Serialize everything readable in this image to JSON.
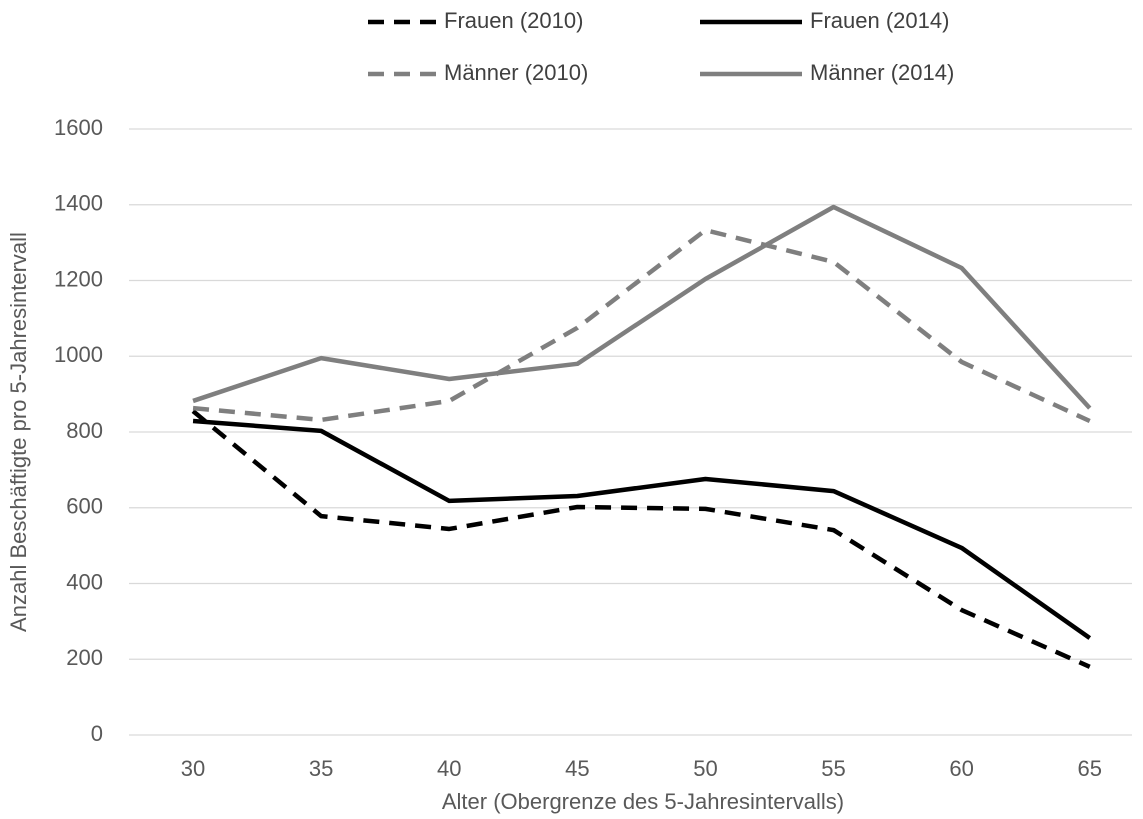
{
  "chart_data": {
    "type": "line",
    "x_label": "Alter (Obergrenze des 5-Jahresintervalls)",
    "y_label": "Anzahl Beschäftigte pro 5-Jahresintervall",
    "categories": [
      "30",
      "35",
      "40",
      "45",
      "50",
      "55",
      "60",
      "65"
    ],
    "series": [
      {
        "name": "Frauen (2010)",
        "color": "#000000",
        "dashed": true,
        "values": [
          855,
          578,
          544,
          602,
          597,
          541,
          330,
          180
        ]
      },
      {
        "name": "Frauen (2014)",
        "color": "#000000",
        "dashed": false,
        "values": [
          829,
          803,
          618,
          631,
          676,
          644,
          494,
          256
        ]
      },
      {
        "name": "Männer (2010)",
        "color": "#7f7f7f",
        "dashed": true,
        "values": [
          863,
          832,
          882,
          1075,
          1333,
          1249,
          985,
          829
        ]
      },
      {
        "name": "Männer (2014)",
        "color": "#7f7f7f",
        "dashed": false,
        "values": [
          882,
          995,
          940,
          980,
          1204,
          1394,
          1233,
          863
        ]
      }
    ],
    "ylim": [
      0,
      1600
    ],
    "yticks": [
      0,
      200,
      400,
      600,
      800,
      1000,
      1200,
      1400,
      1600
    ],
    "grid": true,
    "legend": "top"
  }
}
